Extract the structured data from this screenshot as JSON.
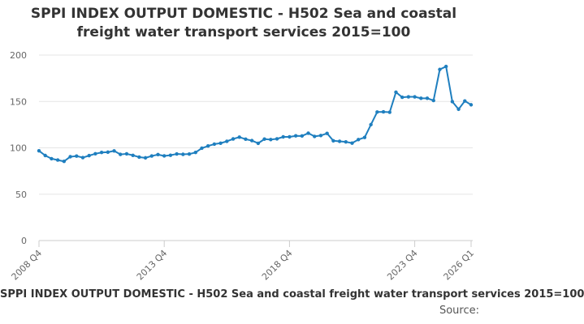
{
  "chart_data": {
    "type": "line",
    "title": "SPPI INDEX OUTPUT DOMESTIC - H502 Sea and coastal freight water transport services 2015=100",
    "title_lines": [
      "SPPI INDEX OUTPUT DOMESTIC - H502 Sea and coastal",
      "freight water transport services 2015=100"
    ],
    "xlabel": "",
    "ylabel": "",
    "ylim": [
      0,
      200
    ],
    "yticks": [
      0,
      50,
      100,
      150,
      200
    ],
    "x_tick_labels": [
      "2008 Q4",
      "2013 Q4",
      "2018 Q4",
      "2023 Q4",
      "2026 Q1"
    ],
    "x_tick_indices": [
      0,
      20,
      40,
      60,
      69
    ],
    "grid": true,
    "color": "#1f7fbf",
    "series": [
      {
        "name": "SPPI INDEX OUTPUT DOMESTIC - H502 Sea and coastal freight water transport services 2015=100",
        "values": [
          96.8,
          91.7,
          88.3,
          86.8,
          85.4,
          90.4,
          91.1,
          89.5,
          91.6,
          93.6,
          95.0,
          95.3,
          96.7,
          92.9,
          93.5,
          91.9,
          90.0,
          89.2,
          91.2,
          92.7,
          91.3,
          92.0,
          93.4,
          93.0,
          93.3,
          95.0,
          99.6,
          102.0,
          104.0,
          105.0,
          107.0,
          109.6,
          111.5,
          109.3,
          107.8,
          104.9,
          109.4,
          108.9,
          109.7,
          111.8,
          111.8,
          112.9,
          112.8,
          115.8,
          112.3,
          113.3,
          115.6,
          107.6,
          107.0,
          106.4,
          105.1,
          108.9,
          111.2,
          125.0,
          138.6,
          138.8,
          138.4,
          160.0,
          154.5,
          155.0,
          155.0,
          153.4,
          153.4,
          151.0,
          184.5,
          187.7,
          149.8,
          141.6,
          150.5,
          146.4
        ]
      }
    ]
  },
  "footer": {
    "series_label": "SPPI INDEX OUTPUT DOMESTIC - H502 Sea and coastal freight water transport services 2015=100",
    "source_label": "Source:"
  }
}
